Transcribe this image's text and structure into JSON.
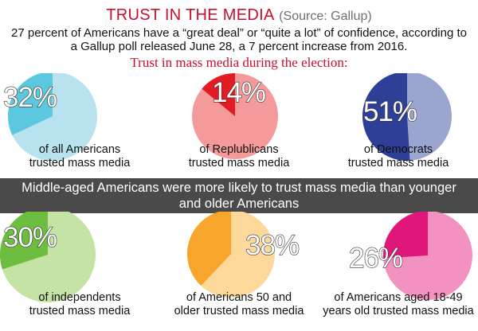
{
  "header": {
    "title": "TRUST IN THE MEDIA",
    "source": "(Source: Gallup)",
    "subtitle": "27 percent of Americans have a “great deal” or “quite a lot” of confidence, according to a Gallup poll released June 28, a 7 percent increase from 2016.",
    "section_title": "Trust in mass media during the election:"
  },
  "band_text": "Middle-aged Americans were more likely to trust mass media than younger and older Americans",
  "chart_data": [
    {
      "type": "pie",
      "label": "32%",
      "value": 32,
      "caption_line1": "of all Americans",
      "caption_line2": "trusted mass media",
      "colors": {
        "slice": "#5bc8e0",
        "rest": "#b8e3ee"
      }
    },
    {
      "type": "pie",
      "label": "14%",
      "value": 14,
      "caption_line1": "of Replublicans",
      "caption_line2": "trusted mass media",
      "colors": {
        "slice": "#e31b23",
        "rest": "#f49a9a"
      }
    },
    {
      "type": "pie",
      "label": "51%",
      "value": 51,
      "caption_line1": "of Democrats",
      "caption_line2": "trusted mass media",
      "colors": {
        "slice": "#2e3f98",
        "rest": "#9aa6cf"
      }
    },
    {
      "type": "pie",
      "label": "30%",
      "value": 30,
      "caption_line1": "of independents",
      "caption_line2": "trusted mass media",
      "colors": {
        "slice": "#6dbd3f",
        "rest": "#c4e3a4"
      }
    },
    {
      "type": "pie",
      "label": "38%",
      "value": 38,
      "caption_line1": "of Americans 50 and",
      "caption_line2": "older trusted mass media",
      "colors": {
        "slice": "#f7a52b",
        "rest": "#fcd89a"
      }
    },
    {
      "type": "pie",
      "label": "26%",
      "value": 26,
      "caption_line1": "of Americans aged 18-49",
      "caption_line2": "years old trusted mass media",
      "colors": {
        "slice": "#e0177a",
        "rest": "#f391c0"
      }
    }
  ]
}
